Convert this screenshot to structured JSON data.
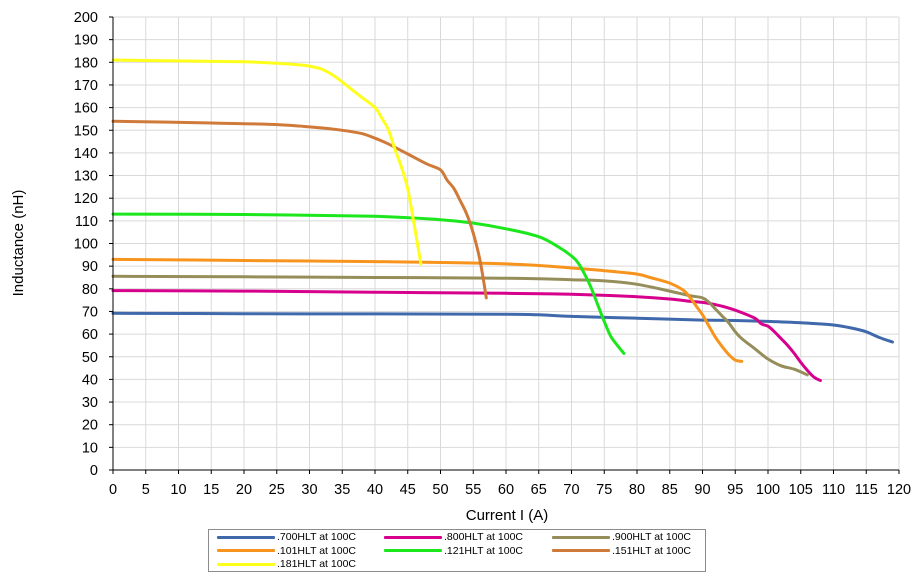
{
  "chart_data": {
    "type": "line",
    "title": "",
    "xlabel": "Current I (A)",
    "ylabel": "Inductance (nH)",
    "xlim": [
      0,
      120
    ],
    "ylim": [
      0,
      200
    ],
    "x_ticks": [
      0,
      5,
      10,
      15,
      20,
      25,
      30,
      35,
      40,
      45,
      50,
      55,
      60,
      65,
      70,
      75,
      80,
      85,
      90,
      95,
      100,
      105,
      110,
      115,
      120
    ],
    "y_ticks": [
      0,
      10,
      20,
      30,
      40,
      50,
      60,
      70,
      80,
      90,
      100,
      110,
      120,
      130,
      140,
      150,
      160,
      170,
      180,
      190,
      200
    ],
    "grid": true,
    "legend_position": "bottom",
    "series": [
      {
        "name": ".700HLT at 100C",
        "color": "#3f69aa",
        "x": [
          0,
          20,
          40,
          60,
          65,
          70,
          80,
          90,
          95,
          100,
          105,
          110,
          113,
          115,
          117,
          119
        ],
        "y": [
          69.2,
          69,
          68.9,
          68.8,
          68.5,
          67.8,
          67,
          66.2,
          66,
          65.6,
          65,
          64,
          62.5,
          61,
          58.5,
          56.5
        ]
      },
      {
        "name": ".800HLT at 100C",
        "color": "#d6008d",
        "x": [
          0,
          20,
          40,
          60,
          70,
          80,
          85,
          88,
          90,
          92,
          94,
          96,
          98,
          99,
          100,
          101,
          102,
          103,
          104,
          105,
          106,
          107,
          108
        ],
        "y": [
          79.2,
          79,
          78.5,
          78,
          77.6,
          76.5,
          75.5,
          74.5,
          74,
          73,
          71.5,
          69.5,
          67,
          64.5,
          63.5,
          61,
          58,
          55,
          51.5,
          47.5,
          44,
          41,
          39.5
        ]
      },
      {
        "name": ".900HLT at 100C",
        "color": "#958e5a",
        "x": [
          0,
          20,
          40,
          60,
          70,
          75,
          80,
          85,
          88,
          90,
          91,
          92,
          93,
          94,
          95,
          96,
          98,
          100,
          102,
          104,
          106
        ],
        "y": [
          85.5,
          85.3,
          85,
          84.7,
          84,
          83.5,
          82,
          79,
          77,
          76,
          74,
          71,
          68,
          65,
          61,
          58,
          53.5,
          49,
          46,
          44.5,
          42
        ]
      },
      {
        "name": ".101HLT at 100C",
        "color": "#f7941d",
        "x": [
          0,
          20,
          40,
          60,
          70,
          75,
          80,
          82,
          85,
          87,
          88,
          89,
          90,
          91,
          92,
          93,
          94,
          95,
          96
        ],
        "y": [
          93,
          92.5,
          92,
          91,
          89.2,
          88,
          86.5,
          85,
          82.5,
          79.5,
          76.5,
          72.5,
          68.5,
          63.5,
          58.5,
          54.5,
          51,
          48.5,
          48
        ]
      },
      {
        "name": ".121HLT at 100C",
        "color": "#1ce61c",
        "x": [
          0,
          20,
          40,
          50,
          55,
          60,
          65,
          68,
          70,
          71,
          72,
          73,
          74,
          75,
          76,
          77,
          78
        ],
        "y": [
          113,
          112.8,
          112,
          110.5,
          109,
          106.5,
          103,
          98.5,
          94.5,
          91.5,
          86.5,
          80.5,
          73,
          65.5,
          59,
          55,
          51.5
        ]
      },
      {
        "name": ".151HLT at 100C",
        "color": "#d07a3a",
        "x": [
          0,
          15,
          25,
          30,
          35,
          38,
          40,
          42,
          45,
          48,
          50,
          51,
          52,
          53,
          54,
          55,
          56,
          57
        ],
        "y": [
          154,
          153.2,
          152.5,
          151.5,
          150,
          148.5,
          146.5,
          144,
          139.5,
          135,
          132.5,
          128,
          124.5,
          119,
          113,
          104.5,
          93,
          76
        ]
      },
      {
        "name": ".181HLT at 100C",
        "color": "#ffff1e",
        "x": [
          0,
          10,
          20,
          25,
          28,
          30,
          32,
          34,
          36,
          38,
          40,
          41,
          42,
          43,
          44,
          45,
          46,
          47
        ],
        "y": [
          181,
          180.6,
          180.2,
          179.6,
          179,
          178.3,
          176.8,
          173.5,
          169,
          164.5,
          160,
          155.5,
          150.5,
          142,
          134,
          124,
          108,
          91
        ]
      }
    ]
  }
}
